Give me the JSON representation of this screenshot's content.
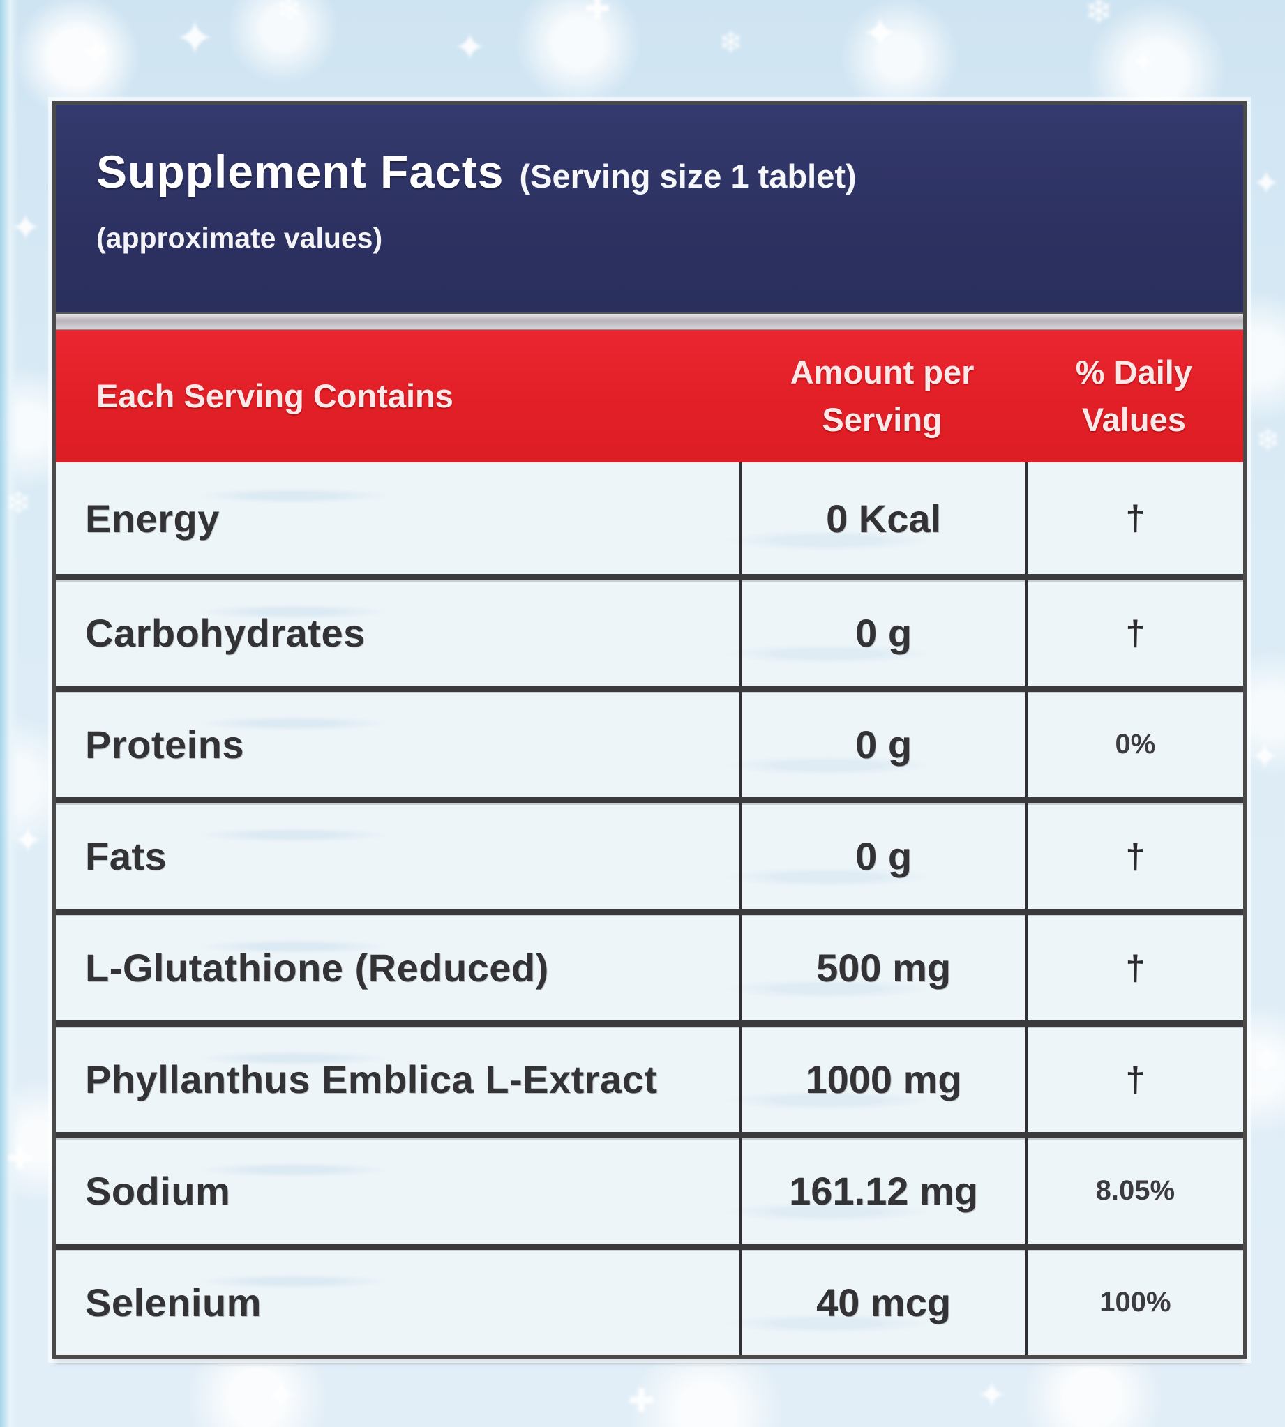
{
  "page": {
    "bg_color": "#d6e8f4"
  },
  "decor": {
    "star_glyph": "✦",
    "snow_glyph": "❄",
    "plus_glyph": "✚"
  },
  "label": {
    "colors": {
      "header_bg": "#2c3161",
      "columns_bg": "#e21f27",
      "row_bg": "#eef5f9",
      "border": "#3a3a3c",
      "header_text": "#ffffff"
    },
    "header": {
      "title": "Supplement Facts",
      "subtitle": "(Serving size 1 tablet)",
      "note": "(approximate values)"
    },
    "columns": [
      "Each Serving Contains",
      "Amount per Serving",
      "% Daily Values"
    ],
    "rows": [
      {
        "name": "Energy",
        "amount": "0 Kcal",
        "dv": "†"
      },
      {
        "name": "Carbohydrates",
        "amount": "0 g",
        "dv": "†"
      },
      {
        "name": "Proteins",
        "amount": "0 g",
        "dv": "0%"
      },
      {
        "name": "Fats",
        "amount": "0 g",
        "dv": "†"
      },
      {
        "name": "L-Glutathione (Reduced)",
        "amount": "500 mg",
        "dv": "†"
      },
      {
        "name": "Phyllanthus Emblica L-Extract",
        "amount": "1000 mg",
        "dv": "†"
      },
      {
        "name": "Sodium",
        "amount": "161.12 mg",
        "dv": "8.05%"
      },
      {
        "name": "Selenium",
        "amount": "40 mcg",
        "dv": "100%"
      }
    ]
  }
}
